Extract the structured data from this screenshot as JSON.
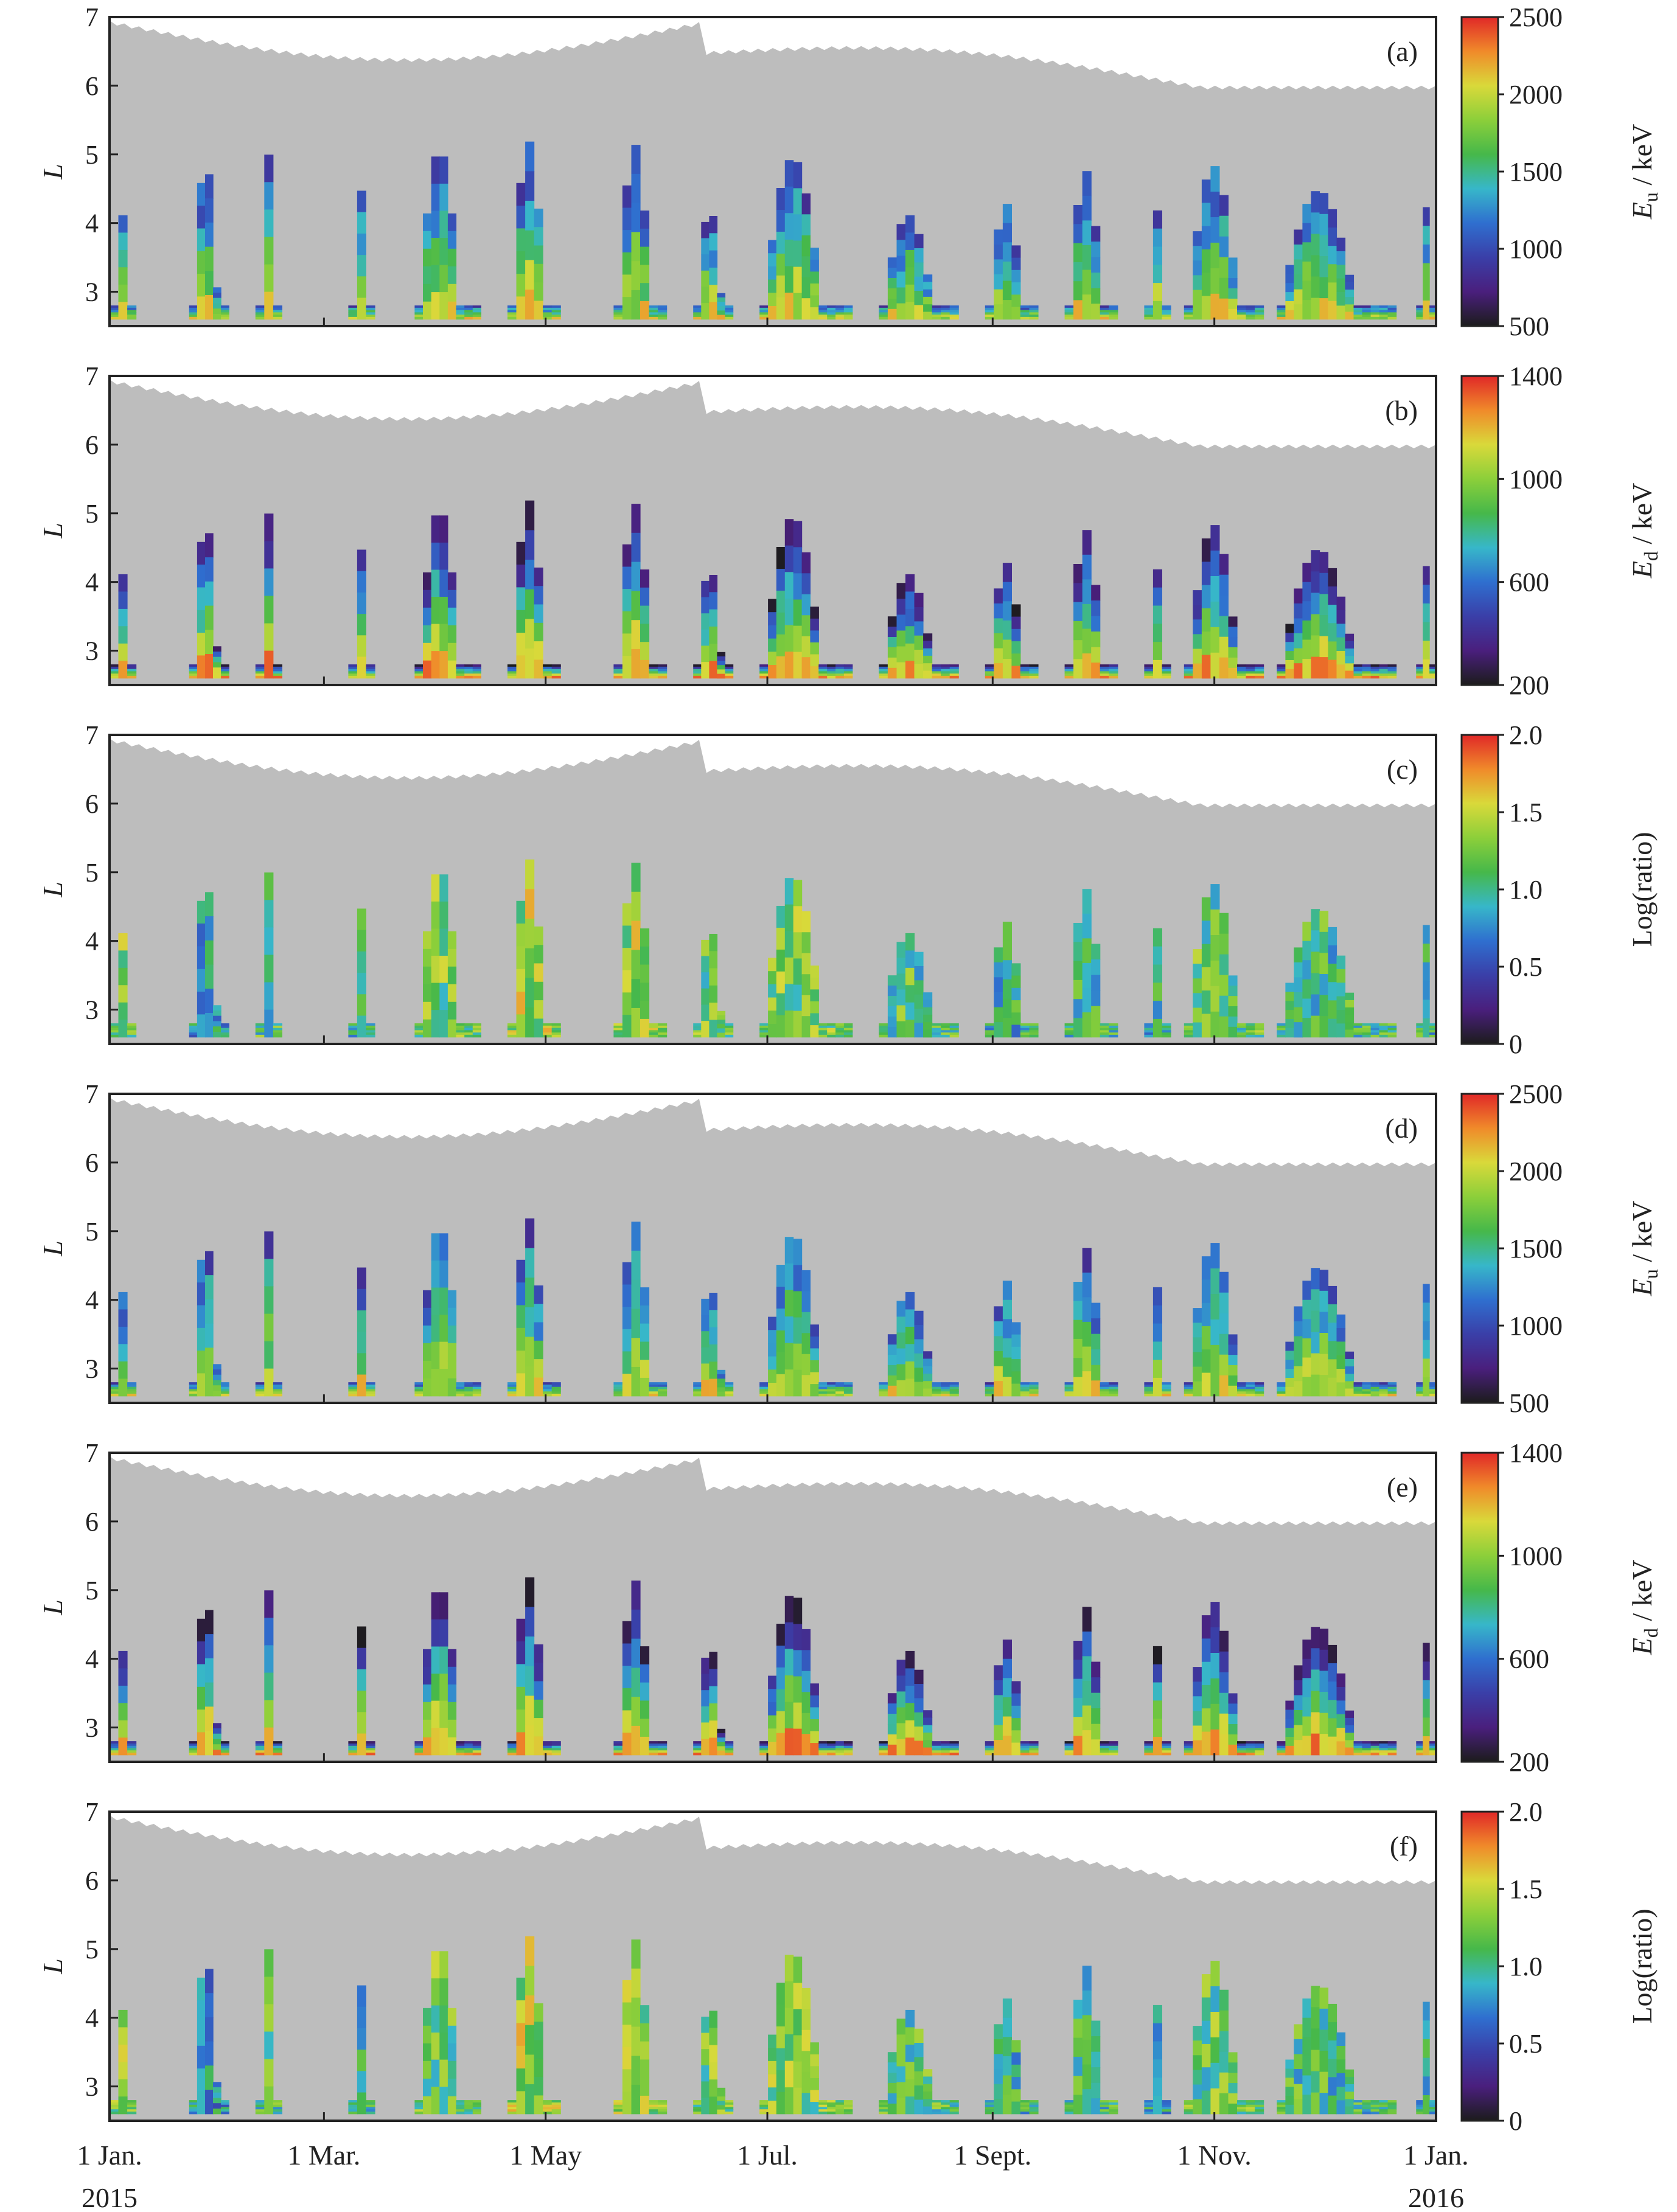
{
  "chart_data": [
    {
      "panel_label": "(a)",
      "type": "heatmap",
      "ylabel": "L",
      "ylim": [
        2.5,
        7
      ],
      "yticks": [
        "3",
        "4",
        "5",
        "6",
        "7"
      ],
      "colorbar": {
        "label_var": "E",
        "label_sub": "u",
        "label_unit": " / keV",
        "min": 500,
        "max": 2500,
        "ticks": [
          "500",
          "1000",
          "1500",
          "2000",
          "2500"
        ]
      }
    },
    {
      "panel_label": "(b)",
      "type": "heatmap",
      "ylabel": "L",
      "ylim": [
        2.5,
        7
      ],
      "yticks": [
        "3",
        "4",
        "5",
        "6",
        "7"
      ],
      "colorbar": {
        "label_var": "E",
        "label_sub": "d",
        "label_unit": " / keV",
        "min": 200,
        "max": 1400,
        "ticks": [
          "200",
          "600",
          "1000",
          "1400"
        ]
      }
    },
    {
      "panel_label": "(c)",
      "type": "heatmap",
      "ylabel": "L",
      "ylim": [
        2.5,
        7
      ],
      "yticks": [
        "3",
        "4",
        "5",
        "6",
        "7"
      ],
      "colorbar": {
        "label_text": "Log(ratio)",
        "min": 0,
        "max": 2.0,
        "ticks": [
          "0",
          "0.5",
          "1.0",
          "1.5",
          "2.0"
        ]
      }
    },
    {
      "panel_label": "(d)",
      "type": "heatmap",
      "ylabel": "L",
      "ylim": [
        2.5,
        7
      ],
      "yticks": [
        "3",
        "4",
        "5",
        "6",
        "7"
      ],
      "colorbar": {
        "label_var": "E",
        "label_sub": "u",
        "label_unit": " / keV",
        "min": 500,
        "max": 2500,
        "ticks": [
          "500",
          "1000",
          "1500",
          "2000",
          "2500"
        ]
      }
    },
    {
      "panel_label": "(e)",
      "type": "heatmap",
      "ylabel": "L",
      "ylim": [
        2.5,
        7
      ],
      "yticks": [
        "3",
        "4",
        "5",
        "6",
        "7"
      ],
      "colorbar": {
        "label_var": "E",
        "label_sub": "d",
        "label_unit": " / keV",
        "min": 200,
        "max": 1400,
        "ticks": [
          "200",
          "600",
          "1000",
          "1400"
        ]
      }
    },
    {
      "panel_label": "(f)",
      "type": "heatmap",
      "ylabel": "L",
      "ylim": [
        2.5,
        7
      ],
      "yticks": [
        "3",
        "4",
        "5",
        "6",
        "7"
      ],
      "colorbar": {
        "label_text": "Log(ratio)",
        "min": 0,
        "max": 2.0,
        "ticks": [
          "0",
          "0.5",
          "1.0",
          "1.5",
          "2.0"
        ]
      }
    }
  ],
  "x_axis": {
    "ticks": [
      "1 Jan.",
      "1 Mar.",
      "1 May",
      "1 Jul.",
      "1 Sept.",
      "1 Nov.",
      "1 Jan."
    ],
    "tick_dates": [
      "2015-01-01",
      "2015-03-01",
      "2015-05-01",
      "2015-07-01",
      "2015-09-01",
      "2015-11-01",
      "2016-01-01"
    ],
    "year_start": "2015",
    "year_end": "2016"
  },
  "colors": {
    "background": "#bdbdbd",
    "colormap": [
      "#1c1c1c",
      "#4a1f7d",
      "#3a3fa8",
      "#2f6fcf",
      "#37b7c9",
      "#46b84a",
      "#8ccf3a",
      "#d9d93a",
      "#f08a2a",
      "#e02828"
    ]
  }
}
